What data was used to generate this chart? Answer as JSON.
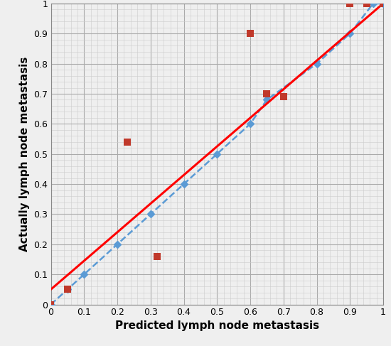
{
  "xlabel": "Predicted lymph node metastasis",
  "ylabel": "Actually lymph node metastasis",
  "xlim": [
    0,
    1
  ],
  "ylim": [
    0,
    1
  ],
  "xticks": [
    0.0,
    0.1,
    0.2,
    0.3,
    0.4,
    0.5,
    0.6,
    0.7,
    0.8,
    0.9,
    1.0
  ],
  "yticks": [
    0.0,
    0.1,
    0.2,
    0.3,
    0.4,
    0.5,
    0.6,
    0.7,
    0.8,
    0.9,
    1.0
  ],
  "blue_line_x": [
    0.0,
    0.05,
    0.1,
    0.2,
    0.3,
    0.4,
    0.5,
    0.6,
    0.65,
    0.8,
    0.9,
    0.97,
    1.0
  ],
  "blue_line_y": [
    0.0,
    0.05,
    0.1,
    0.2,
    0.3,
    0.4,
    0.5,
    0.6,
    0.68,
    0.8,
    0.9,
    1.0,
    1.0
  ],
  "red_line_x": [
    0.0,
    1.0
  ],
  "red_line_y": [
    0.05,
    1.0
  ],
  "red_scatter_x": [
    0.0,
    0.05,
    0.23,
    0.32,
    0.6,
    0.65,
    0.7,
    0.9,
    0.95,
    1.0
  ],
  "red_scatter_y": [
    0.0,
    0.05,
    0.54,
    0.16,
    0.9,
    0.7,
    0.69,
    1.0,
    1.0,
    1.0
  ],
  "blue_color": "#5B9BD5",
  "red_line_color": "#FF0000",
  "red_scatter_color": "#C0392B",
  "grid_major_color": "#AAAAAA",
  "grid_minor_color": "#CCCCCC",
  "background_color": "#EFEFEF",
  "axis_label_fontsize": 11,
  "tick_fontsize": 9
}
